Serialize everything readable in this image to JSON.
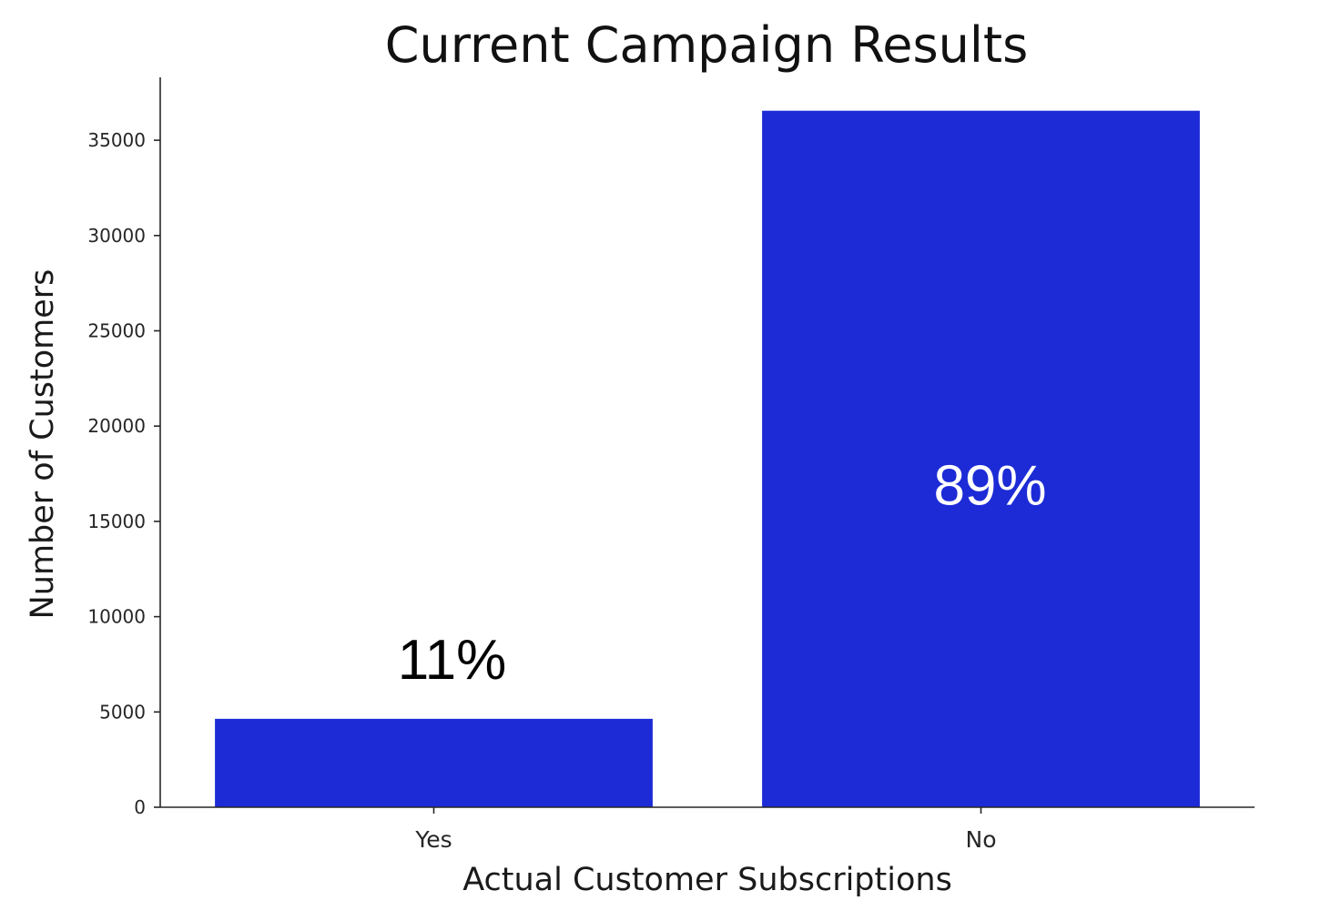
{
  "chart_data": {
    "type": "bar",
    "title": "Current Campaign Results",
    "xlabel": "Actual Customer Subscriptions",
    "ylabel": "Number of Customers",
    "categories": [
      "Yes",
      "No"
    ],
    "values": [
      4640,
      36548
    ],
    "data_labels": [
      "11%",
      "89%"
    ],
    "ylim": [
      0,
      38300
    ],
    "yticks": [
      0,
      5000,
      10000,
      15000,
      20000,
      25000,
      30000,
      35000
    ],
    "ytick_labels": [
      "0",
      "5000",
      "10000",
      "15000",
      "20000",
      "25000",
      "30000",
      "35000"
    ],
    "grid": false,
    "legend": "none",
    "colors": {
      "bar": "#1c2bd6",
      "axis": "#262626",
      "label_outside": "#000000",
      "label_inside": "#ffffff"
    }
  }
}
